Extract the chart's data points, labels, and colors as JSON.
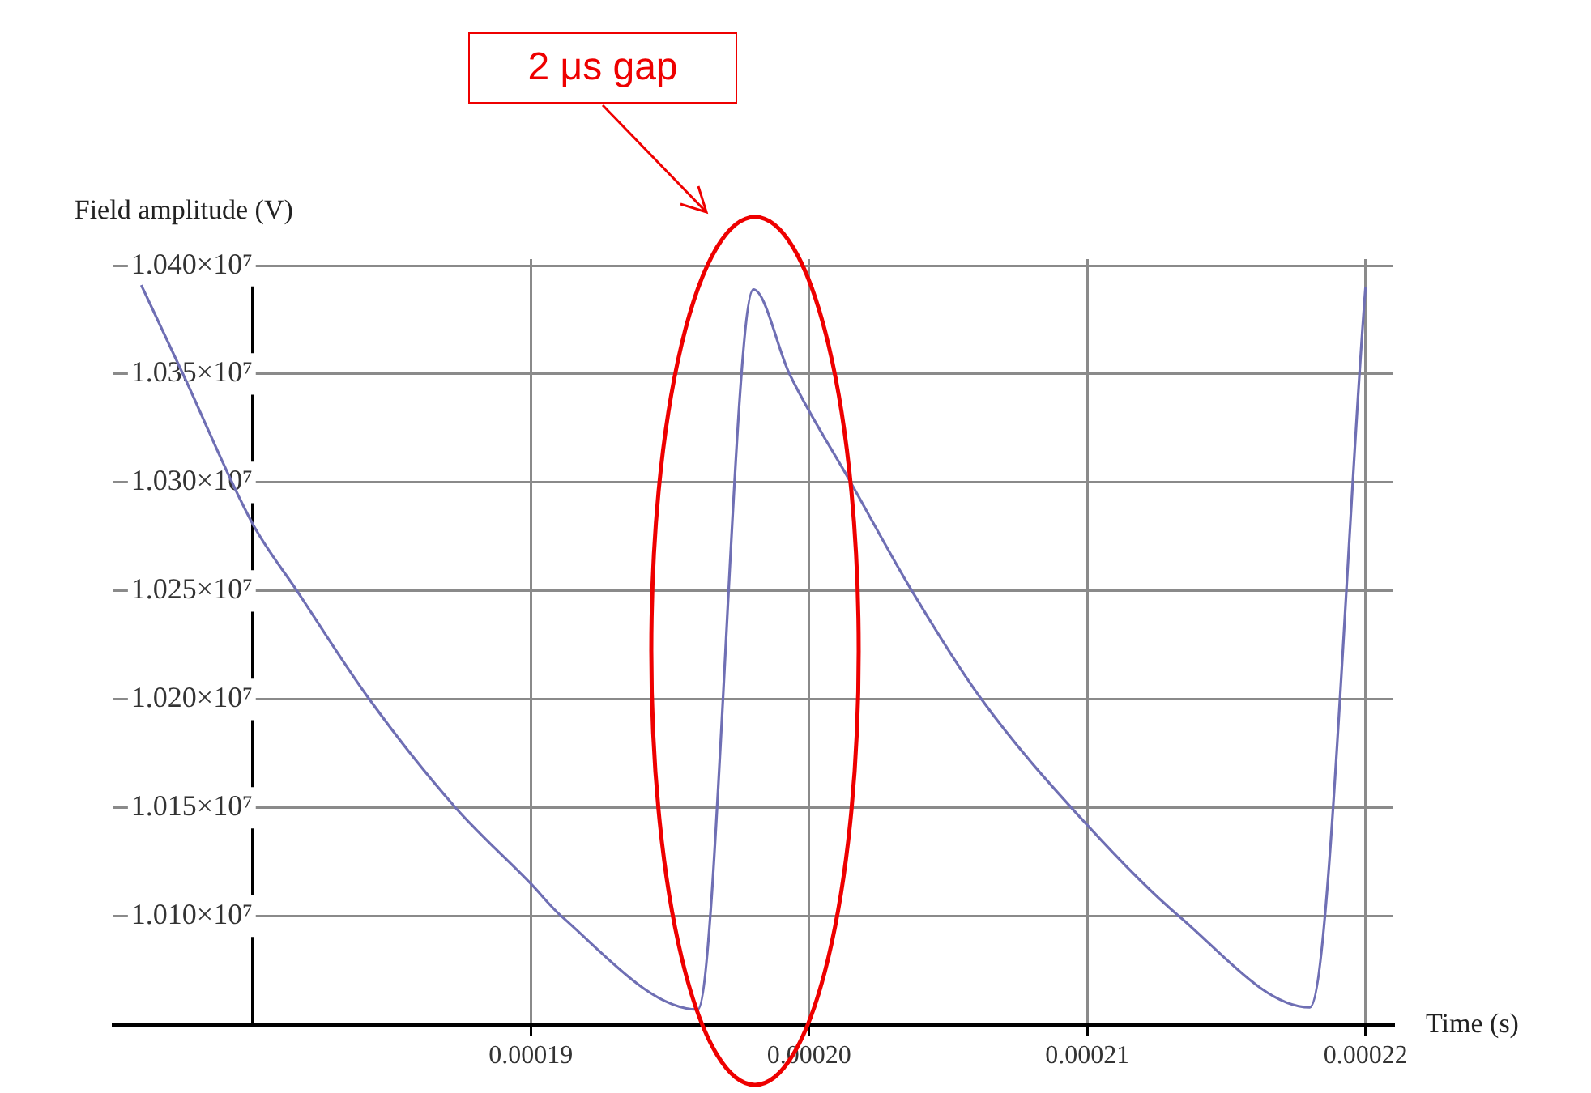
{
  "chart_data": {
    "type": "line",
    "xlabel": "Time (s)",
    "ylabel": "Field amplitude (V)",
    "annotations": [
      "2 μs gap"
    ],
    "x": [
      0.000176,
      0.0001775,
      0.00018,
      0.0001816,
      0.0001842,
      0.0001873,
      0.00019,
      0.0001911,
      0.000196,
      0.000198,
      0.0001993,
      0.0002015,
      0.0002037,
      0.0002062,
      0.00021,
      0.0002133,
      0.000218,
      0.00022
    ],
    "series": [
      {
        "color": "#6f6fb4",
        "values": [
          10391000,
          10350000,
          10281000,
          10250000,
          10200000,
          10150000,
          10115000,
          10100000,
          10057000,
          10389000,
          10350000,
          10300000,
          10250000,
          10200000,
          10142000,
          10100000,
          10058000,
          10390000
        ]
      }
    ],
    "xlim": [
      0.000175,
      0.000221
    ],
    "xticks": [
      {
        "value": 0.00019,
        "label": "0.00019"
      },
      {
        "value": 0.0002,
        "label": "0.00020"
      },
      {
        "value": 0.00021,
        "label": "0.00021"
      },
      {
        "value": 0.00022,
        "label": "0.00022"
      }
    ],
    "ylim": [
      10050000,
      10403000
    ],
    "yticks": [
      {
        "value": 10100000,
        "label": "1.010×10⁷"
      },
      {
        "value": 10150000,
        "label": "1.015×10⁷"
      },
      {
        "value": 10200000,
        "label": "1.020×10⁷"
      },
      {
        "value": 10250000,
        "label": "1.025×10⁷"
      },
      {
        "value": 10300000,
        "label": "1.030×10⁷"
      },
      {
        "value": 10350000,
        "label": "1.035×10⁷"
      },
      {
        "value": 10400000,
        "label": "1.040×10⁷"
      }
    ],
    "grid": true,
    "legend": false,
    "marker": "none",
    "line_style": "solid"
  }
}
